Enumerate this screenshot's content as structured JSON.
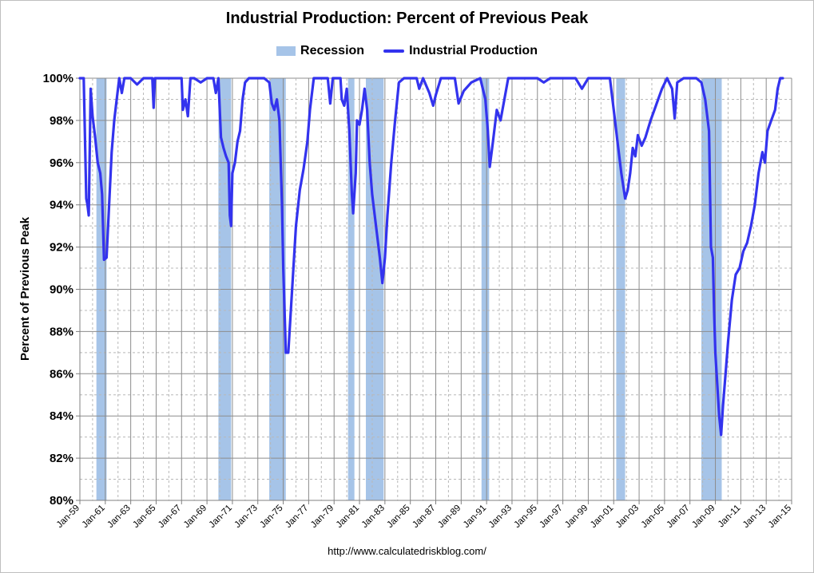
{
  "chart_data": {
    "type": "line",
    "title": "Industrial Production: Percent of Previous Peak",
    "xlabel": "",
    "ylabel": "Percent of Previous Peak",
    "ylim": [
      80,
      100
    ],
    "xlim": [
      1959.0,
      2015.0
    ],
    "grid": true,
    "legend_placement": "top-center",
    "legend": [
      "Recession",
      "Industrial Production"
    ],
    "y_tick_labels": [
      "80%",
      "82%",
      "84%",
      "86%",
      "88%",
      "90%",
      "92%",
      "94%",
      "96%",
      "98%",
      "100%"
    ],
    "y_tick_values": [
      80,
      82,
      84,
      86,
      88,
      90,
      92,
      94,
      96,
      98,
      100
    ],
    "x_tick_labels": [
      "Jan-59",
      "Jan-61",
      "Jan-63",
      "Jan-65",
      "Jan-67",
      "Jan-69",
      "Jan-71",
      "Jan-73",
      "Jan-75",
      "Jan-77",
      "Jan-79",
      "Jan-81",
      "Jan-83",
      "Jan-85",
      "Jan-87",
      "Jan-89",
      "Jan-91",
      "Jan-93",
      "Jan-95",
      "Jan-97",
      "Jan-99",
      "Jan-01",
      "Jan-03",
      "Jan-05",
      "Jan-07",
      "Jan-09",
      "Jan-11",
      "Jan-13",
      "Jan-15"
    ],
    "x_tick_values": [
      1959,
      1961,
      1963,
      1965,
      1967,
      1969,
      1971,
      1973,
      1975,
      1977,
      1979,
      1981,
      1983,
      1985,
      1987,
      1989,
      1991,
      1993,
      1995,
      1997,
      1999,
      2001,
      2003,
      2005,
      2007,
      2009,
      2011,
      2013,
      2015
    ],
    "recessions": [
      {
        "start": 1960.3,
        "end": 1961.1
      },
      {
        "start": 1969.9,
        "end": 1970.9
      },
      {
        "start": 1973.9,
        "end": 1975.2
      },
      {
        "start": 1980.1,
        "end": 1980.6
      },
      {
        "start": 1981.5,
        "end": 1982.9
      },
      {
        "start": 1990.6,
        "end": 1991.2
      },
      {
        "start": 2001.2,
        "end": 2001.9
      },
      {
        "start": 2007.9,
        "end": 2009.5
      }
    ],
    "series": [
      {
        "name": "Industrial Production",
        "color": "#3333ee",
        "points": [
          [
            1959.0,
            100
          ],
          [
            1959.3,
            100
          ],
          [
            1959.5,
            94.3
          ],
          [
            1959.6,
            94.0
          ],
          [
            1959.7,
            93.5
          ],
          [
            1959.85,
            99.5
          ],
          [
            1960.0,
            98.2
          ],
          [
            1960.2,
            97.2
          ],
          [
            1960.4,
            96.0
          ],
          [
            1960.6,
            95.5
          ],
          [
            1960.75,
            94.5
          ],
          [
            1960.9,
            91.4
          ],
          [
            1961.1,
            91.5
          ],
          [
            1961.3,
            94.0
          ],
          [
            1961.5,
            96.5
          ],
          [
            1961.7,
            98.0
          ],
          [
            1961.9,
            99.0
          ],
          [
            1962.1,
            100
          ],
          [
            1962.3,
            99.3
          ],
          [
            1962.5,
            100
          ],
          [
            1963.0,
            100
          ],
          [
            1963.5,
            99.7
          ],
          [
            1964.0,
            100
          ],
          [
            1964.7,
            100
          ],
          [
            1964.8,
            98.6
          ],
          [
            1964.9,
            100
          ],
          [
            1966.0,
            100
          ],
          [
            1967.0,
            100
          ],
          [
            1967.1,
            98.5
          ],
          [
            1967.3,
            99.0
          ],
          [
            1967.5,
            98.2
          ],
          [
            1967.7,
            100
          ],
          [
            1968.0,
            100
          ],
          [
            1968.5,
            99.8
          ],
          [
            1969.0,
            100
          ],
          [
            1969.5,
            100
          ],
          [
            1969.7,
            99.3
          ],
          [
            1969.9,
            100
          ],
          [
            1970.1,
            97.2
          ],
          [
            1970.3,
            96.7
          ],
          [
            1970.5,
            96.3
          ],
          [
            1970.7,
            96.0
          ],
          [
            1970.8,
            93.5
          ],
          [
            1970.9,
            93.0
          ],
          [
            1971.0,
            95.5
          ],
          [
            1971.2,
            96.0
          ],
          [
            1971.4,
            97.0
          ],
          [
            1971.6,
            97.5
          ],
          [
            1971.8,
            99.0
          ],
          [
            1972.0,
            99.8
          ],
          [
            1972.3,
            100
          ],
          [
            1973.5,
            100
          ],
          [
            1973.9,
            99.8
          ],
          [
            1974.1,
            98.8
          ],
          [
            1974.3,
            98.5
          ],
          [
            1974.5,
            99.0
          ],
          [
            1974.7,
            98.0
          ],
          [
            1974.9,
            94.0
          ],
          [
            1975.0,
            91.0
          ],
          [
            1975.1,
            89.0
          ],
          [
            1975.2,
            87.0
          ],
          [
            1975.4,
            87.0
          ],
          [
            1975.6,
            89.0
          ],
          [
            1975.8,
            91.0
          ],
          [
            1976.0,
            93.0
          ],
          [
            1976.3,
            94.7
          ],
          [
            1976.6,
            95.7
          ],
          [
            1976.9,
            97.0
          ],
          [
            1977.1,
            98.5
          ],
          [
            1977.4,
            100
          ],
          [
            1978.5,
            100
          ],
          [
            1978.7,
            98.8
          ],
          [
            1978.9,
            100
          ],
          [
            1979.5,
            100
          ],
          [
            1979.6,
            99.0
          ],
          [
            1979.8,
            98.7
          ],
          [
            1980.0,
            99.5
          ],
          [
            1980.2,
            97.5
          ],
          [
            1980.4,
            94.5
          ],
          [
            1980.5,
            93.6
          ],
          [
            1980.7,
            95.5
          ],
          [
            1980.8,
            98.0
          ],
          [
            1981.0,
            97.8
          ],
          [
            1981.2,
            98.5
          ],
          [
            1981.4,
            99.5
          ],
          [
            1981.6,
            98.5
          ],
          [
            1981.8,
            96.0
          ],
          [
            1982.0,
            94.5
          ],
          [
            1982.2,
            93.5
          ],
          [
            1982.4,
            92.5
          ],
          [
            1982.6,
            91.5
          ],
          [
            1982.8,
            90.3
          ],
          [
            1983.0,
            91.5
          ],
          [
            1983.2,
            93.5
          ],
          [
            1983.5,
            96.0
          ],
          [
            1983.8,
            98.0
          ],
          [
            1984.1,
            99.8
          ],
          [
            1984.5,
            100
          ],
          [
            1985.5,
            100
          ],
          [
            1985.7,
            99.5
          ],
          [
            1986.0,
            100
          ],
          [
            1986.5,
            99.3
          ],
          [
            1986.8,
            98.7
          ],
          [
            1987.0,
            99.2
          ],
          [
            1987.4,
            100
          ],
          [
            1988.5,
            100
          ],
          [
            1988.8,
            98.8
          ],
          [
            1989.2,
            99.4
          ],
          [
            1989.8,
            99.8
          ],
          [
            1990.5,
            100
          ],
          [
            1990.9,
            99.0
          ],
          [
            1991.1,
            97.5
          ],
          [
            1991.25,
            95.8
          ],
          [
            1991.5,
            97.0
          ],
          [
            1991.8,
            98.5
          ],
          [
            1992.1,
            98.0
          ],
          [
            1992.4,
            99.0
          ],
          [
            1992.7,
            100
          ],
          [
            1993.5,
            100
          ],
          [
            1994.0,
            100
          ],
          [
            1995.0,
            100
          ],
          [
            1995.5,
            99.8
          ],
          [
            1996.0,
            100
          ],
          [
            1997.0,
            100
          ],
          [
            1998.0,
            100
          ],
          [
            1998.5,
            99.5
          ],
          [
            1999.0,
            100
          ],
          [
            2000.0,
            100
          ],
          [
            2000.7,
            100
          ],
          [
            2001.0,
            98.5
          ],
          [
            2001.3,
            97.0
          ],
          [
            2001.6,
            95.5
          ],
          [
            2001.9,
            94.3
          ],
          [
            2002.1,
            94.7
          ],
          [
            2002.3,
            95.5
          ],
          [
            2002.5,
            96.7
          ],
          [
            2002.7,
            96.3
          ],
          [
            2002.9,
            97.3
          ],
          [
            2003.2,
            96.8
          ],
          [
            2003.5,
            97.2
          ],
          [
            2003.9,
            98.0
          ],
          [
            2004.2,
            98.5
          ],
          [
            2004.5,
            99.0
          ],
          [
            2004.8,
            99.5
          ],
          [
            2005.2,
            100
          ],
          [
            2005.6,
            99.5
          ],
          [
            2005.8,
            98.1
          ],
          [
            2006.0,
            99.8
          ],
          [
            2006.5,
            100
          ],
          [
            2007.0,
            100
          ],
          [
            2007.5,
            100
          ],
          [
            2007.9,
            99.8
          ],
          [
            2008.2,
            99.0
          ],
          [
            2008.5,
            97.5
          ],
          [
            2008.65,
            92.0
          ],
          [
            2008.8,
            91.5
          ],
          [
            2008.9,
            89.0
          ],
          [
            2009.0,
            87.0
          ],
          [
            2009.15,
            85.5
          ],
          [
            2009.3,
            84.0
          ],
          [
            2009.45,
            83.1
          ],
          [
            2009.6,
            84.5
          ],
          [
            2009.8,
            86.0
          ],
          [
            2010.0,
            87.5
          ],
          [
            2010.3,
            89.5
          ],
          [
            2010.6,
            90.7
          ],
          [
            2010.9,
            91.0
          ],
          [
            2011.2,
            91.8
          ],
          [
            2011.5,
            92.2
          ],
          [
            2011.8,
            93.0
          ],
          [
            2012.1,
            94.0
          ],
          [
            2012.4,
            95.5
          ],
          [
            2012.7,
            96.5
          ],
          [
            2012.9,
            96.0
          ],
          [
            2013.1,
            97.5
          ],
          [
            2013.4,
            98.0
          ],
          [
            2013.7,
            98.5
          ],
          [
            2013.9,
            99.5
          ],
          [
            2014.1,
            100
          ],
          [
            2014.3,
            100
          ]
        ]
      }
    ],
    "source_note": "http://www.calculatedriskblog.com/"
  }
}
